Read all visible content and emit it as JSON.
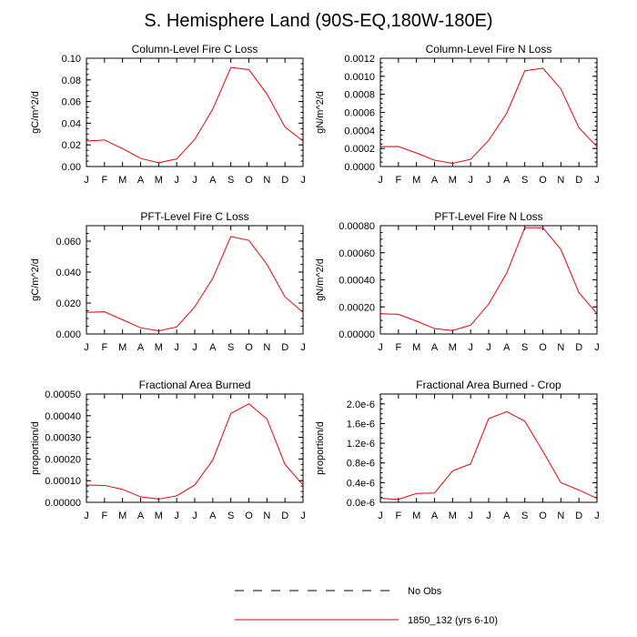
{
  "figure": {
    "title": "S. Hemisphere Land (90S-EQ,180W-180E)",
    "line_color": "#e8000b",
    "legend": [
      {
        "label": "No Obs",
        "style": "dashed",
        "color": "#000000"
      },
      {
        "label": "1850_132 (yrs 6-10)",
        "style": "solid",
        "color": "#e8000b"
      }
    ]
  },
  "chart_data": [
    {
      "type": "line",
      "title": "Column-Level Fire C Loss",
      "ylabel": "gC/m^2/d",
      "categories": [
        "J",
        "F",
        "M",
        "A",
        "M",
        "J",
        "J",
        "A",
        "S",
        "O",
        "N",
        "D",
        "J"
      ],
      "ylim": [
        0,
        0.1
      ],
      "yticks": [
        0,
        0.02,
        0.04,
        0.06,
        0.08,
        0.1
      ],
      "yticklabels": [
        "0.00",
        "0.02",
        "0.04",
        "0.06",
        "0.08",
        "0.10"
      ],
      "series": [
        {
          "values": [
            0.0235,
            0.0245,
            0.0165,
            0.0075,
            0.0035,
            0.007,
            0.025,
            0.053,
            0.0915,
            0.0895,
            0.067,
            0.0365,
            0.0235
          ]
        }
      ]
    },
    {
      "type": "line",
      "title": "Column-Level Fire N Loss",
      "ylabel": "gN/m^2/d",
      "categories": [
        "J",
        "F",
        "M",
        "A",
        "M",
        "J",
        "J",
        "A",
        "S",
        "O",
        "N",
        "D",
        "J"
      ],
      "ylim": [
        0,
        0.0012
      ],
      "yticks": [
        0,
        0.0002,
        0.0004,
        0.0006,
        0.0008,
        0.001,
        0.0012
      ],
      "yticklabels": [
        "0.0000",
        "0.0002",
        "0.0004",
        "0.0006",
        "0.0008",
        "0.0010",
        "0.0012"
      ],
      "series": [
        {
          "values": [
            0.00022,
            0.000222,
            0.00015,
            7e-05,
            3.5e-05,
            8e-05,
            0.00029,
            0.00059,
            0.00106,
            0.00109,
            0.00086,
            0.00043,
            0.00022
          ]
        }
      ]
    },
    {
      "type": "line",
      "title": "PFT-Level Fire C Loss",
      "ylabel": "gC/m^2/d",
      "categories": [
        "J",
        "F",
        "M",
        "A",
        "M",
        "J",
        "J",
        "A",
        "S",
        "O",
        "N",
        "D",
        "J"
      ],
      "ylim": [
        0,
        0.07
      ],
      "yticks": [
        0,
        0.02,
        0.04,
        0.06
      ],
      "yticklabels": [
        "0.000",
        "0.020",
        "0.040",
        "0.060"
      ],
      "series": [
        {
          "values": [
            0.014,
            0.0143,
            0.0092,
            0.004,
            0.002,
            0.0045,
            0.0175,
            0.036,
            0.063,
            0.0605,
            0.045,
            0.024,
            0.014
          ]
        }
      ]
    },
    {
      "type": "line",
      "title": "PFT-Level Fire N Loss",
      "ylabel": "gN/m^2/d",
      "categories": [
        "J",
        "F",
        "M",
        "A",
        "M",
        "J",
        "J",
        "A",
        "S",
        "O",
        "N",
        "D",
        "J"
      ],
      "ylim": [
        0,
        0.0008
      ],
      "yticks": [
        0,
        0.0002,
        0.0004,
        0.0006,
        0.0008
      ],
      "yticklabels": [
        "0.00000",
        "0.00020",
        "0.00040",
        "0.00060",
        "0.00080"
      ],
      "series": [
        {
          "values": [
            0.00015,
            0.000145,
            9.5e-05,
            4e-05,
            2.5e-05,
            6.5e-05,
            0.00022,
            0.00045,
            0.000785,
            0.000785,
            0.000625,
            0.000305,
            0.00015
          ]
        }
      ]
    },
    {
      "type": "line",
      "title": "Fractional Area Burned",
      "ylabel": "proportion/d",
      "categories": [
        "J",
        "F",
        "M",
        "A",
        "M",
        "J",
        "J",
        "A",
        "S",
        "O",
        "N",
        "D",
        "J"
      ],
      "ylim": [
        0,
        0.0005
      ],
      "yticks": [
        0,
        0.0001,
        0.0002,
        0.0003,
        0.0004,
        0.0005
      ],
      "yticklabels": [
        "0.00000",
        "0.00010",
        "0.00020",
        "0.00030",
        "0.00040",
        "0.00050"
      ],
      "series": [
        {
          "values": [
            8e-05,
            7.8e-05,
            6e-05,
            2.5e-05,
            1.5e-05,
            3e-05,
            8e-05,
            0.000195,
            0.00041,
            0.000455,
            0.000385,
            0.000175,
            8e-05
          ]
        }
      ]
    },
    {
      "type": "line",
      "title": "Fractional Area Burned - Crop",
      "ylabel": "proportion/d",
      "categories": [
        "J",
        "F",
        "M",
        "A",
        "M",
        "J",
        "J",
        "A",
        "S",
        "O",
        "N",
        "D",
        "J"
      ],
      "ylim": [
        0,
        2.2e-06
      ],
      "yticks": [
        0,
        4e-07,
        8e-07,
        1.2e-06,
        1.6e-06,
        2e-06
      ],
      "yticklabels": [
        "0.0e-6",
        "0.4e-6",
        "0.8e-6",
        "1.2e-6",
        "1.6e-6",
        "2.0e-6"
      ],
      "series": [
        {
          "values": [
            8e-08,
            6e-08,
            1.8e-07,
            1.9e-07,
            6.4e-07,
            7.8e-07,
            1.7e-06,
            1.84e-06,
            1.65e-06,
            1.04e-06,
            4e-07,
            2.5e-07,
            8e-08
          ]
        }
      ]
    }
  ]
}
